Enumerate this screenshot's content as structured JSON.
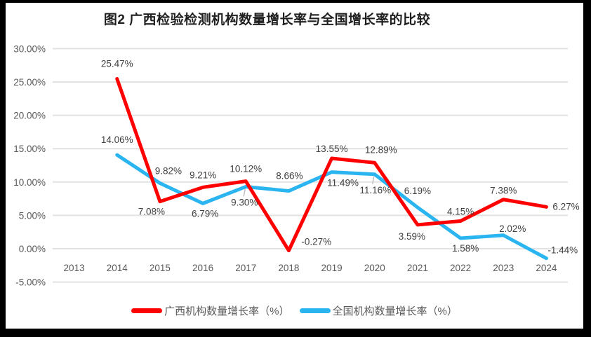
{
  "title": "图2 广西检验检测机构数量增长率与全国增长率的比较",
  "colors": {
    "guangxi": "#FF0000",
    "national": "#2BB5F0",
    "grid": "#E2E2E2",
    "axis_text": "#595959",
    "data_label_text": "#404040",
    "leader": "#BFBFBF",
    "frame": "#000000",
    "background": "#FFFFFF"
  },
  "chart_data": {
    "type": "line",
    "title": "图2 广西检验检测机构数量增长率与全国增长率的比较",
    "categories": [
      "2013",
      "2014",
      "2015",
      "2016",
      "2017",
      "2018",
      "2019",
      "2020",
      "2021",
      "2022",
      "2023",
      "2024"
    ],
    "series": [
      {
        "name": "广西机构数量增长率（%）",
        "color_key": "guangxi",
        "values": [
          null,
          25.47,
          7.08,
          9.21,
          10.12,
          -0.27,
          13.55,
          12.89,
          3.59,
          4.15,
          7.38,
          6.27
        ]
      },
      {
        "name": "全国机构数量增长率（%）",
        "color_key": "national",
        "values": [
          null,
          14.06,
          9.82,
          6.79,
          9.3,
          8.66,
          11.49,
          11.16,
          6.19,
          1.58,
          2.02,
          -1.44
        ]
      }
    ],
    "y_ticks": [
      "30.00%",
      "25.00%",
      "20.00%",
      "15.00%",
      "10.00%",
      "5.00%",
      "0.00%",
      "-5.00%"
    ],
    "ylim": [
      -5,
      30
    ],
    "y_tick_step": 5,
    "xlabel": "",
    "ylabel": "",
    "grid": true,
    "legend_position": "bottom",
    "data_labels": true,
    "label_format": "0.00%"
  }
}
